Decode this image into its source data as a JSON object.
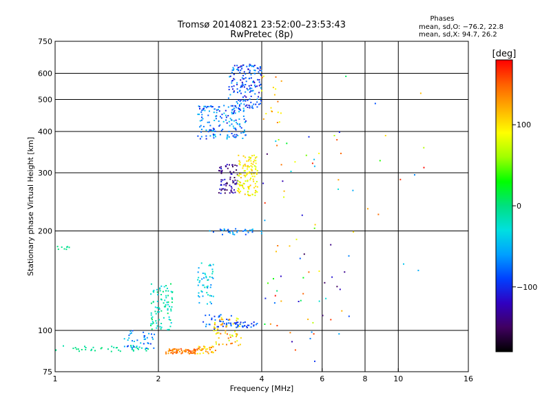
{
  "title": {
    "line1": "Tromsø 20140821 23:52:00–23:53:43",
    "line2": "RwPretec (8p)"
  },
  "phase_stats": {
    "header": "Phases",
    "o_line": "mean, sd,O: −76.2, 22.8",
    "x_line": "mean, sd,X:  94.7, 26.2"
  },
  "colorbar": {
    "unit_label": "[deg]",
    "ticks": [
      {
        "value": 100,
        "label": "100"
      },
      {
        "value": 0,
        "label": "0"
      },
      {
        "value": -100,
        "label": "−100"
      }
    ],
    "range": [
      -180,
      180
    ],
    "colors": [
      "#000000",
      "#400060",
      "#3000c0",
      "#0040ff",
      "#00a0ff",
      "#00e0e0",
      "#00e080",
      "#00ff00",
      "#a0ff00",
      "#ffff00",
      "#ffb000",
      "#ff6000",
      "#ff0000"
    ]
  },
  "chart_data": {
    "type": "scatter",
    "xlabel": "Frequency [MHz]",
    "ylabel": "Stationary phase Virtual Height [km]",
    "x_scale": "log",
    "y_scale": "log",
    "xlim": [
      1,
      16
    ],
    "ylim": [
      75,
      750
    ],
    "x_ticks": [
      {
        "value": 1,
        "label": "1"
      },
      {
        "value": 2,
        "label": "2"
      },
      {
        "value": 4,
        "label": "4"
      },
      {
        "value": 6,
        "label": "6"
      },
      {
        "value": 8,
        "label": "8"
      },
      {
        "value": 10,
        "label": "10"
      },
      {
        "value": 16,
        "label": "16"
      }
    ],
    "y_ticks": [
      {
        "value": 75,
        "label": "75"
      },
      {
        "value": 100,
        "label": "100"
      },
      {
        "value": 200,
        "label": "200"
      },
      {
        "value": 300,
        "label": "300"
      },
      {
        "value": 400,
        "label": "400"
      },
      {
        "value": 500,
        "label": "500"
      },
      {
        "value": 600,
        "label": "600"
      },
      {
        "value": 750,
        "label": "750"
      }
    ],
    "x_gridlines": [
      2,
      4,
      6,
      8,
      10
    ],
    "y_gridlines": [
      100,
      200,
      300,
      400,
      500,
      600
    ],
    "clusters": [
      {
        "x": [
          1.0,
          1.1
        ],
        "y": [
          175,
          180
        ],
        "phase": [
          -10,
          5
        ],
        "count": 8
      },
      {
        "x": [
          1.0,
          1.9
        ],
        "y": [
          86,
          90
        ],
        "phase": [
          -15,
          5
        ],
        "count": 40
      },
      {
        "x": [
          1.55,
          1.95
        ],
        "y": [
          88,
          100
        ],
        "phase": [
          -100,
          -40
        ],
        "count": 40
      },
      {
        "x": [
          1.9,
          2.2
        ],
        "y": [
          100,
          140
        ],
        "phase": [
          -40,
          10
        ],
        "count": 90
      },
      {
        "x": [
          2.1,
          2.6
        ],
        "y": [
          85,
          88
        ],
        "phase": [
          120,
          160
        ],
        "count": 70
      },
      {
        "x": [
          2.6,
          3.0
        ],
        "y": [
          85,
          90
        ],
        "phase": [
          90,
          150
        ],
        "count": 30
      },
      {
        "x": [
          2.6,
          2.9
        ],
        "y": [
          120,
          160
        ],
        "phase": [
          -70,
          -10
        ],
        "count": 50
      },
      {
        "x": [
          2.7,
          3.3
        ],
        "y": [
          100,
          112
        ],
        "phase": [
          -100,
          -60
        ],
        "count": 35
      },
      {
        "x": [
          2.9,
          3.5
        ],
        "y": [
          90,
          110
        ],
        "phase": [
          70,
          150
        ],
        "count": 60
      },
      {
        "x": [
          3.3,
          3.9
        ],
        "y": [
          102,
          106
        ],
        "phase": [
          -110,
          -70
        ],
        "count": 30
      },
      {
        "x": [
          2.8,
          4.0
        ],
        "y": [
          195,
          203
        ],
        "phase": [
          -100,
          -40
        ],
        "count": 35
      },
      {
        "x": [
          3.0,
          3.4
        ],
        "y": [
          260,
          320
        ],
        "phase": [
          -160,
          -100
        ],
        "count": 70
      },
      {
        "x": [
          3.4,
          3.9
        ],
        "y": [
          255,
          340
        ],
        "phase": [
          70,
          120
        ],
        "count": 120
      },
      {
        "x": [
          2.6,
          3.6
        ],
        "y": [
          380,
          480
        ],
        "phase": [
          -110,
          -40
        ],
        "count": 160
      },
      {
        "x": [
          3.2,
          4.0
        ],
        "y": [
          470,
          640
        ],
        "phase": [
          -120,
          -50
        ],
        "count": 160
      },
      {
        "x": [
          4.0,
          4.6
        ],
        "y": [
          420,
          600
        ],
        "phase": [
          80,
          150
        ],
        "count": 18
      },
      {
        "x": [
          4.0,
          7.2
        ],
        "y": [
          80,
          400
        ],
        "phase": [
          -170,
          180
        ],
        "count": 70
      },
      {
        "x": [
          6.5,
          12.5
        ],
        "y": [
          140,
          640
        ],
        "phase": [
          -170,
          180
        ],
        "count": 20
      }
    ]
  }
}
